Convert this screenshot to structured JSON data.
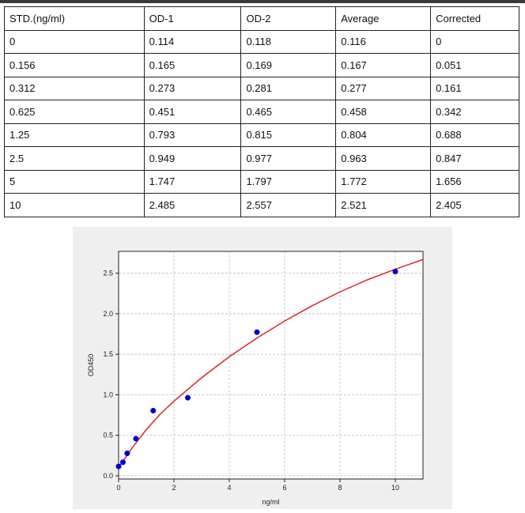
{
  "table": {
    "header": [
      "STD.(ng/ml)",
      "OD-1",
      "OD-2",
      "Average",
      "Corrected"
    ],
    "rows": [
      [
        "0",
        "0.114",
        "0.118",
        "0.116",
        "0"
      ],
      [
        "0.156",
        "0.165",
        "0.169",
        "0.167",
        "0.051"
      ],
      [
        "0.312",
        "0.273",
        "0.281",
        "0.277",
        "0.161"
      ],
      [
        "0.625",
        "0.451",
        "0.465",
        "0.458",
        "0.342"
      ],
      [
        "1.25",
        "0.793",
        "0.815",
        "0.804",
        "0.688"
      ],
      [
        "2.5",
        "0.949",
        "0.977",
        "0.963",
        "0.847"
      ],
      [
        "5",
        "1.747",
        "1.797",
        "1.772",
        "1.656"
      ],
      [
        "10",
        "2.485",
        "2.557",
        "2.521",
        "2.405"
      ]
    ]
  },
  "chart_data": {
    "type": "scatter",
    "x_label": "ng/ml",
    "y_label": "OD450",
    "xlim": [
      0,
      11
    ],
    "ylim": [
      -0.04,
      2.77
    ],
    "xticks": [
      0,
      2,
      4,
      6,
      8,
      10
    ],
    "yticks": [
      {
        "value": 0,
        "label": "0.0"
      },
      0.5,
      {
        "value": 1,
        "label": "1.0"
      },
      1.5,
      {
        "value": 2,
        "label": "2.0"
      },
      2.5
    ],
    "grid": true,
    "series": [
      {
        "type": "line",
        "color": "#d62728",
        "x": [
          0,
          0.5,
          1,
          1.5,
          2,
          3,
          4,
          5,
          6,
          7,
          8,
          9,
          10,
          11
        ],
        "values": [
          0.1,
          0.35,
          0.57,
          0.76,
          0.92,
          1.21,
          1.47,
          1.7,
          1.91,
          2.1,
          2.27,
          2.42,
          2.55,
          2.67
        ]
      },
      {
        "type": "scatter",
        "color": "#0000cc",
        "x": [
          0,
          0.156,
          0.312,
          0.625,
          1.25,
          2.5,
          5,
          10
        ],
        "values": [
          0.116,
          0.167,
          0.277,
          0.458,
          0.804,
          0.963,
          1.772,
          2.521
        ]
      }
    ]
  }
}
